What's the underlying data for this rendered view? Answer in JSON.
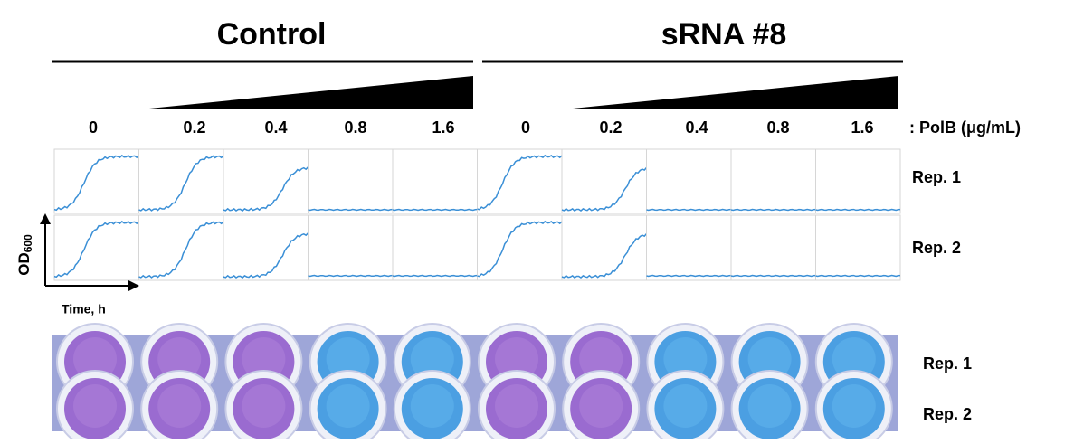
{
  "groups": [
    {
      "label": "Control",
      "concentrations": [
        "0",
        "0.2",
        "0.4",
        "0.8",
        "1.6"
      ]
    },
    {
      "label": "sRNA #8",
      "concentrations": [
        "0",
        "0.2",
        "0.4",
        "0.8",
        "1.6"
      ]
    }
  ],
  "concentration_unit": ": PolB (μg/mL)",
  "curve_rows": [
    "Rep. 1",
    "Rep. 2"
  ],
  "y_axis": {
    "label": "OD",
    "subscript": "600"
  },
  "x_axis": "Time, h",
  "plate_rows": [
    "Rep. 1",
    "Rep. 2"
  ]
}
